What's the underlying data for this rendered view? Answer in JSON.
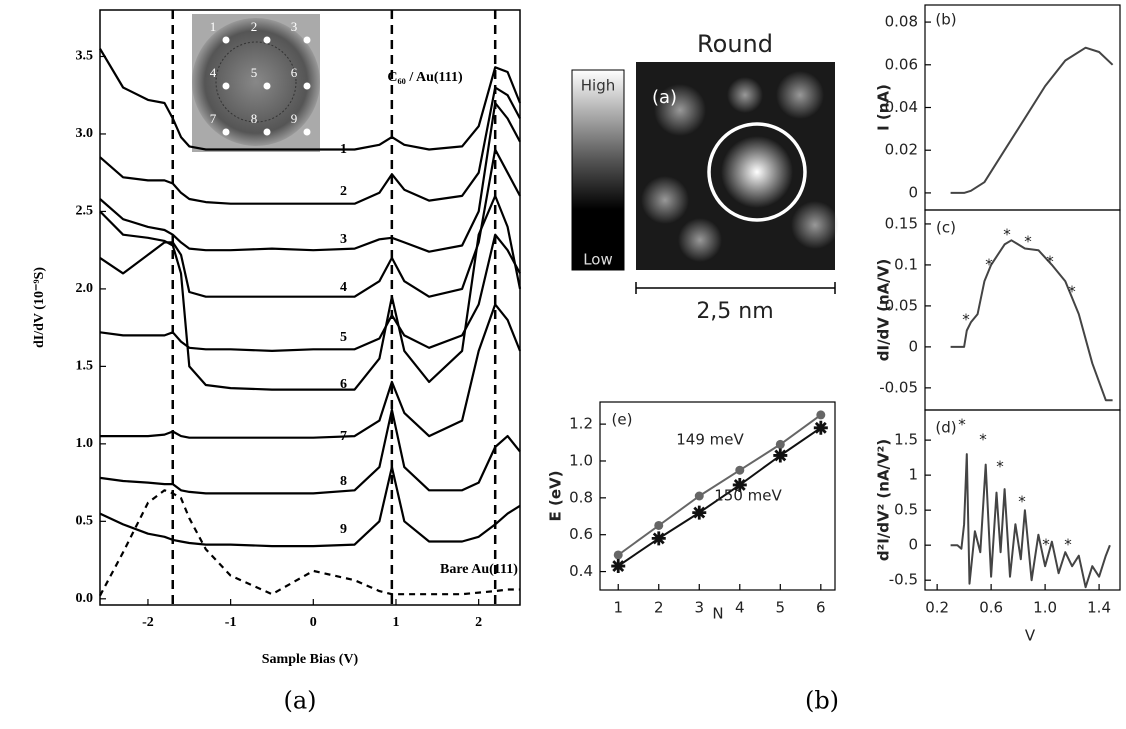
{
  "chart_data": [
    {
      "type": "line",
      "xlabel": "Sample Bias (V)",
      "ylabel": "dI/dV (10⁻⁹S)",
      "annotations": [
        "C₆₀ / Au(111)"
      ],
      "xlim": [
        -2.58,
        2.5
      ],
      "ylim": [
        -0.04,
        3.8
      ],
      "xticks": [
        -2,
        -1,
        0,
        1,
        2
      ],
      "yticks": [
        {
          "value": 0,
          "label": "0.0"
        },
        0.5,
        {
          "value": 1,
          "label": "1.0"
        },
        1.5,
        {
          "value": 2,
          "label": "2.0"
        },
        2.5,
        {
          "value": 3,
          "label": "3.0"
        },
        3.5
      ],
      "vlines": [
        -1.7,
        0.95,
        2.2
      ],
      "x": [
        -2.58,
        -2.3,
        -2.0,
        -1.8,
        -1.7,
        -1.6,
        -1.5,
        -1.3,
        -1.0,
        -0.5,
        0,
        0.5,
        0.8,
        0.95,
        1.1,
        1.4,
        1.8,
        2.0,
        2.2,
        2.35,
        2.5
      ],
      "series": [
        {
          "name": "1",
          "color": "#000000",
          "values": [
            3.55,
            3.3,
            3.22,
            3.2,
            3.1,
            2.98,
            2.92,
            2.9,
            2.9,
            2.9,
            2.9,
            2.9,
            2.93,
            2.98,
            2.93,
            2.9,
            2.92,
            3.05,
            3.43,
            3.4,
            3.2
          ]
        },
        {
          "name": "2",
          "color": "#000000",
          "values": [
            2.85,
            2.72,
            2.7,
            2.7,
            2.68,
            2.62,
            2.58,
            2.56,
            2.55,
            2.55,
            2.55,
            2.55,
            2.62,
            2.74,
            2.64,
            2.57,
            2.6,
            2.75,
            3.3,
            3.25,
            3.1
          ]
        },
        {
          "name": "3",
          "color": "#000000",
          "values": [
            2.58,
            2.45,
            2.4,
            2.38,
            2.35,
            2.3,
            2.26,
            2.25,
            2.25,
            2.26,
            2.25,
            2.26,
            2.32,
            2.33,
            2.3,
            2.24,
            2.28,
            2.5,
            3.2,
            3.1,
            2.95
          ]
        },
        {
          "name": "4",
          "color": "#000000",
          "values": [
            2.2,
            2.1,
            2.22,
            2.3,
            2.3,
            2.22,
            1.98,
            1.95,
            1.95,
            1.95,
            1.95,
            1.95,
            2.05,
            2.2,
            2.05,
            1.95,
            2.0,
            2.3,
            2.9,
            2.75,
            2.6
          ]
        },
        {
          "name": "5",
          "color": "#000000",
          "values": [
            1.72,
            1.7,
            1.7,
            1.7,
            1.72,
            1.66,
            1.62,
            1.61,
            1.61,
            1.6,
            1.61,
            1.61,
            1.68,
            1.83,
            1.7,
            1.62,
            1.7,
            1.9,
            2.35,
            2.25,
            2.1
          ]
        },
        {
          "name": "6",
          "color": "#000000",
          "values": [
            2.5,
            2.35,
            2.33,
            2.31,
            2.28,
            2.1,
            1.5,
            1.38,
            1.36,
            1.35,
            1.35,
            1.35,
            1.55,
            1.95,
            1.6,
            1.4,
            1.6,
            2.35,
            2.6,
            2.4,
            2.0
          ]
        },
        {
          "name": "7",
          "color": "#000000",
          "values": [
            1.05,
            1.05,
            1.05,
            1.06,
            1.08,
            1.05,
            1.04,
            1.04,
            1.04,
            1.04,
            1.04,
            1.05,
            1.15,
            1.4,
            1.2,
            1.05,
            1.15,
            1.6,
            1.9,
            1.8,
            1.6
          ]
        },
        {
          "name": "8",
          "color": "#000000",
          "values": [
            0.78,
            0.76,
            0.75,
            0.74,
            0.74,
            0.7,
            0.69,
            0.68,
            0.68,
            0.68,
            0.68,
            0.7,
            0.85,
            1.22,
            0.85,
            0.7,
            0.7,
            0.75,
            0.98,
            1.05,
            0.95
          ]
        },
        {
          "name": "9",
          "color": "#000000",
          "values": [
            0.55,
            0.48,
            0.42,
            0.4,
            0.38,
            0.37,
            0.36,
            0.35,
            0.35,
            0.34,
            0.34,
            0.35,
            0.5,
            0.85,
            0.5,
            0.37,
            0.37,
            0.4,
            0.48,
            0.55,
            0.6
          ]
        },
        {
          "name": "Bare Au(111)",
          "color": "#000000",
          "dashed": true,
          "values": [
            0.02,
            0.3,
            0.62,
            0.7,
            0.68,
            0.65,
            0.52,
            0.32,
            0.15,
            0.03,
            0.18,
            0.12,
            0.05,
            0.03,
            0.03,
            0.03,
            0.03,
            0.04,
            0.05,
            0.06,
            0.06
          ]
        }
      ]
    },
    {
      "type": "line",
      "panel_label": "(e)",
      "xlabel": "N",
      "ylabel": "E (eV)",
      "annotations": [
        "149 meV",
        "150 meV"
      ],
      "xlim": [
        0.55,
        6.35
      ],
      "ylim": [
        0.3,
        1.32
      ],
      "xticks": [
        1,
        2,
        3,
        4,
        5,
        6
      ],
      "yticks": [
        0.4,
        0.6,
        0.8,
        {
          "value": 1,
          "label": "1.0"
        },
        1.2
      ],
      "x": [
        1,
        2,
        3,
        4,
        5,
        6
      ],
      "series": [
        {
          "color": "#666666",
          "marker": "circle",
          "values": [
            0.49,
            0.65,
            0.81,
            0.95,
            1.09,
            1.25
          ]
        },
        {
          "color": "#111111",
          "marker": "star",
          "values": [
            0.43,
            0.58,
            0.72,
            0.87,
            1.03,
            1.18
          ]
        }
      ]
    },
    {
      "type": "line",
      "panel_label": "(b)",
      "ylabel": "I (nA)",
      "xlim": [
        0.11,
        1.555
      ],
      "ylim": [
        -0.008,
        0.088
      ],
      "yticks": [
        0,
        0.02,
        0.04,
        0.06,
        0.08
      ],
      "x": [
        0.3,
        0.4,
        0.45,
        0.55,
        0.7,
        0.85,
        1.0,
        1.15,
        1.3,
        1.4,
        1.5
      ],
      "series": [
        {
          "color": "#444444",
          "values": [
            0,
            0,
            0.001,
            0.005,
            0.02,
            0.035,
            0.05,
            0.062,
            0.068,
            0.066,
            0.06
          ]
        }
      ]
    },
    {
      "type": "line",
      "panel_label": "(c)",
      "ylabel": "dI/dV (nA/V)",
      "annotations": [
        "*",
        "*",
        "*",
        "*",
        "*",
        "*"
      ],
      "xlim": [
        0.11,
        1.555
      ],
      "ylim": [
        -0.077,
        0.167
      ],
      "yticks": [
        0.15,
        0.1,
        0.05,
        0,
        -0.05
      ],
      "x": [
        0.3,
        0.4,
        0.42,
        0.45,
        0.5,
        0.55,
        0.6,
        0.7,
        0.75,
        0.85,
        0.95,
        1.05,
        1.15,
        1.25,
        1.35,
        1.45,
        1.5
      ],
      "series": [
        {
          "color": "#444444",
          "values": [
            0,
            0,
            0.02,
            0.03,
            0.04,
            0.08,
            0.1,
            0.125,
            0.13,
            0.12,
            0.118,
            0.1,
            0.08,
            0.04,
            -0.02,
            -0.065,
            -0.065
          ]
        }
      ]
    },
    {
      "type": "line",
      "panel_label": "(d)",
      "xlabel": "V",
      "ylabel": "d²I/dV² (nA/V²)",
      "annotations": [
        "*",
        "*",
        "*",
        "*",
        "*",
        "*"
      ],
      "xlim": [
        0.11,
        1.555
      ],
      "ylim": [
        -0.64,
        1.93
      ],
      "xticks": [
        0.2,
        0.6,
        {
          "value": 1,
          "label": "1.0"
        },
        1.4
      ],
      "yticks": [
        1.5,
        1,
        0.5,
        0,
        -0.5
      ],
      "x": [
        0.3,
        0.35,
        0.38,
        0.4,
        0.42,
        0.44,
        0.48,
        0.52,
        0.56,
        0.6,
        0.64,
        0.67,
        0.7,
        0.74,
        0.78,
        0.82,
        0.85,
        0.9,
        0.95,
        1.0,
        1.05,
        1.1,
        1.15,
        1.2,
        1.25,
        1.3,
        1.35,
        1.4,
        1.45,
        1.48
      ],
      "series": [
        {
          "color": "#444444",
          "values": [
            0,
            0,
            -0.05,
            0.3,
            1.3,
            -0.55,
            0.2,
            -0.1,
            1.15,
            -0.45,
            0.75,
            -0.1,
            0.8,
            -0.45,
            0.3,
            -0.2,
            0.5,
            -0.5,
            0.15,
            -0.3,
            0.05,
            -0.4,
            -0.1,
            -0.3,
            -0.15,
            -0.6,
            -0.3,
            -0.45,
            -0.15,
            0
          ]
        }
      ]
    }
  ],
  "inset_labels": [
    "1",
    "2",
    "3",
    "4",
    "5",
    "6",
    "7",
    "8",
    "9"
  ],
  "image_panel": {
    "title": "Round",
    "label": "(a)",
    "colorbar_high": "High",
    "colorbar_low": "Low",
    "scale_bar": "2,5 nm"
  },
  "captions": [
    "(a)",
    "(b)"
  ]
}
